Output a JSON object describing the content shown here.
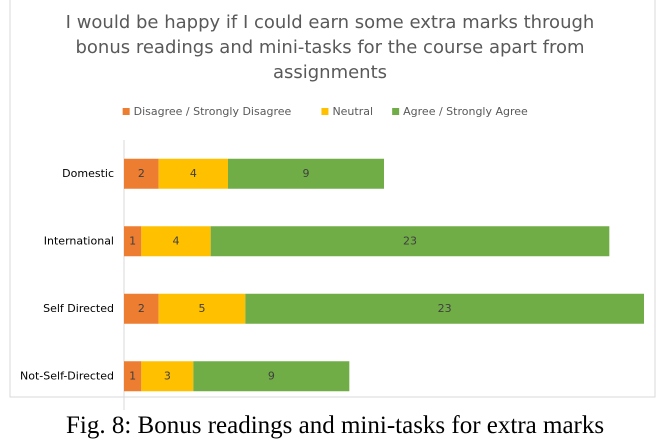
{
  "chart_data": {
    "type": "stacked_bar_horizontal",
    "title": "I would be happy if I could earn some extra marks through bonus readings and mini-tasks for the course apart from assignments",
    "categories": [
      "Domestic",
      "International",
      "Self Directed",
      "Not-Self-Directed"
    ],
    "series": [
      {
        "name": "Disagree / Strongly Disagree",
        "color": "#ed7d31",
        "values": [
          2,
          1,
          2,
          1
        ]
      },
      {
        "name": "Neutral",
        "color": "#ffc000",
        "values": [
          4,
          4,
          5,
          3
        ]
      },
      {
        "name": "Agree / Strongly Agree",
        "color": "#70ad47",
        "values": [
          9,
          23,
          23,
          9
        ]
      }
    ],
    "legend": "top",
    "caption": "Fig. 8: Bonus readings and mini-tasks for extra marks"
  }
}
